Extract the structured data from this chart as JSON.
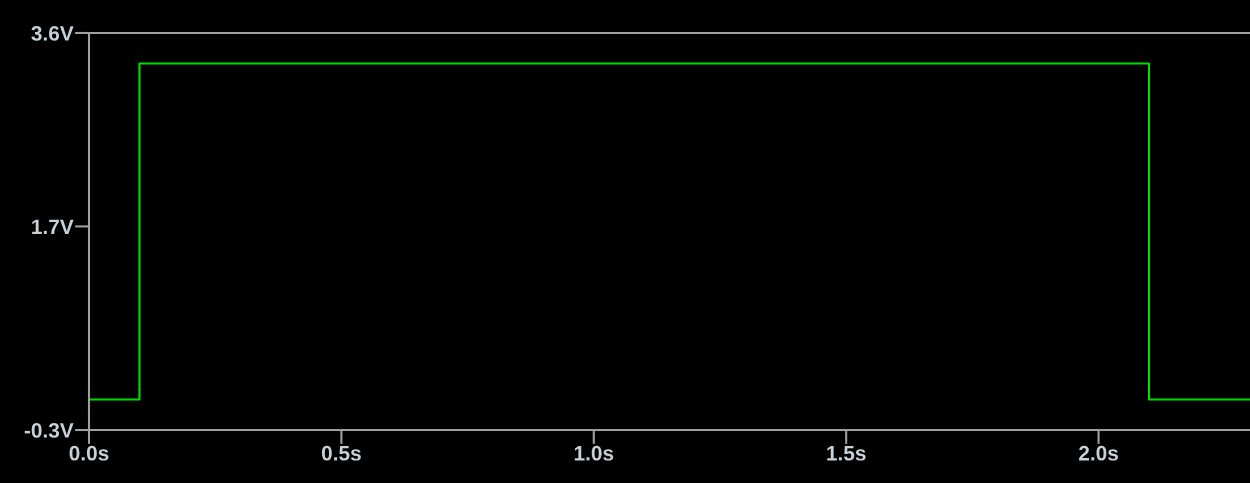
{
  "chart_data": {
    "type": "step",
    "x": [
      0,
      0.1,
      2.1,
      2.3
    ],
    "series": [
      {
        "color": "#00e000",
        "values": [
          0,
          3.3,
          0,
          0
        ]
      }
    ],
    "xlim": [
      0,
      2.3
    ],
    "xticks": [
      {
        "value": 0,
        "label": "0.0s"
      },
      {
        "value": 0.5,
        "label": "0.5s"
      },
      {
        "value": 1.0,
        "label": "1.0s"
      },
      {
        "value": 1.5,
        "label": "1.5s"
      },
      {
        "value": 2.0,
        "label": "2.0s"
      }
    ],
    "ylim": [
      -0.3,
      3.6
    ],
    "yticks": [
      {
        "value": -0.3,
        "label": "-0.3V"
      },
      {
        "value": 1.7,
        "label": "1.7V"
      },
      {
        "value": 3.6,
        "label": "3.6V"
      }
    ],
    "grid": false,
    "legend": false
  }
}
